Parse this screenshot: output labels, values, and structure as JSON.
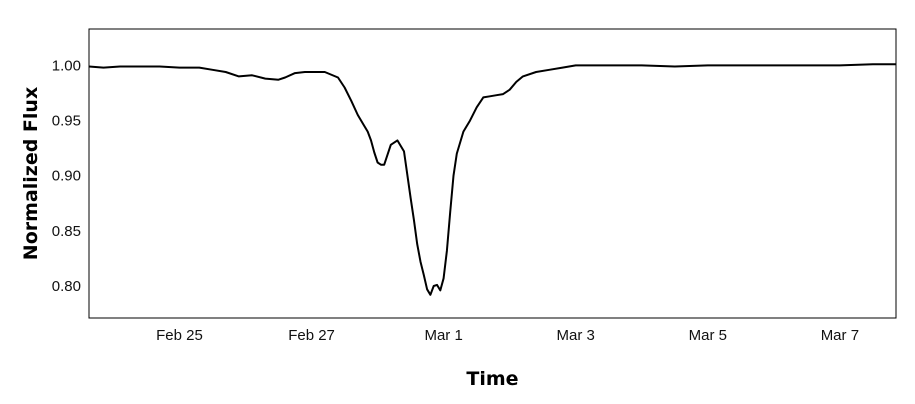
{
  "chart_data": {
    "type": "line",
    "title": "",
    "xlabel": "Time",
    "ylabel": "Normalized Flux",
    "x_ticks": [
      {
        "label": "Feb 25",
        "day": 1
      },
      {
        "label": "Feb 27",
        "day": 3
      },
      {
        "label": "Mar 1",
        "day": 5
      },
      {
        "label": "Mar 3",
        "day": 7
      },
      {
        "label": "Mar 5",
        "day": 9
      },
      {
        "label": "Mar 7",
        "day": 11
      }
    ],
    "y_ticks": [
      "0.80",
      "0.85",
      "0.90",
      "0.95",
      "1.00"
    ],
    "xlim": [
      -0.37,
      11.85
    ],
    "ylim": [
      0.771,
      1.033
    ],
    "grid": false,
    "legend": "none",
    "line_color": "#000000",
    "series": [
      {
        "x": [
          -0.37,
          -0.15,
          0.1,
          0.4,
          0.7,
          1.0,
          1.3,
          1.5,
          1.7,
          1.9,
          2.1,
          2.3,
          2.5,
          2.6,
          2.75,
          2.9,
          3.0,
          3.2,
          3.4,
          3.5,
          3.6,
          3.7,
          3.8,
          3.85,
          3.9,
          3.95,
          4.0,
          4.05,
          4.1,
          4.2,
          4.3,
          4.4,
          4.5,
          4.55,
          4.6,
          4.65,
          4.7,
          4.75,
          4.8,
          4.85,
          4.9,
          4.95,
          5.0,
          5.05,
          5.1,
          5.15,
          5.2,
          5.3,
          5.4,
          5.5,
          5.6,
          5.7,
          5.8,
          5.9,
          6.0,
          6.1,
          6.2,
          6.4,
          6.6,
          6.8,
          7.0,
          7.5,
          8.0,
          8.5,
          9.0,
          9.5,
          10.0,
          10.5,
          11.0,
          11.5,
          11.85
        ],
        "values": [
          0.999,
          0.998,
          0.999,
          0.999,
          0.999,
          0.998,
          0.998,
          0.996,
          0.994,
          0.99,
          0.991,
          0.988,
          0.987,
          0.989,
          0.993,
          0.994,
          0.994,
          0.994,
          0.989,
          0.98,
          0.968,
          0.955,
          0.945,
          0.94,
          0.932,
          0.921,
          0.912,
          0.91,
          0.91,
          0.928,
          0.932,
          0.922,
          0.88,
          0.86,
          0.838,
          0.822,
          0.81,
          0.797,
          0.792,
          0.8,
          0.801,
          0.796,
          0.807,
          0.832,
          0.867,
          0.9,
          0.92,
          0.94,
          0.95,
          0.962,
          0.971,
          0.972,
          0.973,
          0.974,
          0.978,
          0.985,
          0.99,
          0.994,
          0.996,
          0.998,
          1.0,
          1.0,
          1.0,
          0.999,
          1.0,
          1.0,
          1.0,
          1.0,
          1.0,
          1.001,
          1.001
        ]
      }
    ]
  }
}
